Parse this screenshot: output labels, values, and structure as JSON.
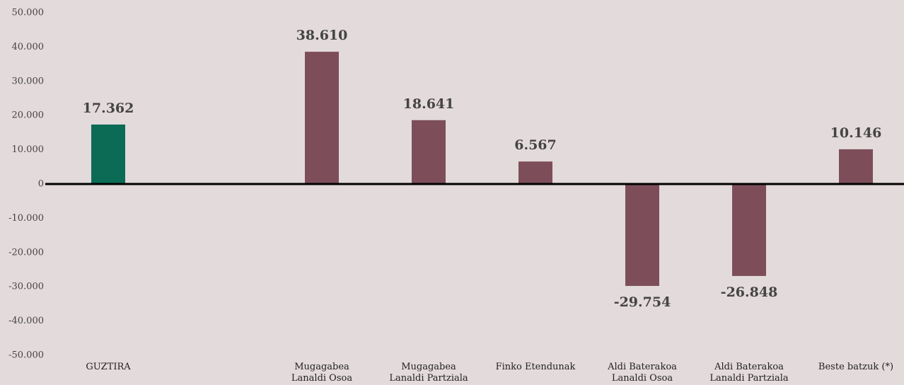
{
  "chart_data": {
    "type": "bar",
    "categories": [
      "GUZTIRA",
      null,
      "Mugagabea\nLanaldi Osoa",
      "Mugagabea\nLanaldi Partziala",
      "Finko Etendunak",
      "Aldi Baterakoa\nLanaldi Osoa",
      "Aldi Baterakoa\nLanaldi Partziala",
      "Beste batzuk (*)"
    ],
    "values": [
      17362,
      null,
      38610,
      18641,
      6567,
      -29754,
      -26848,
      10146
    ],
    "value_labels": [
      "17.362",
      null,
      "38.610",
      "18.641",
      "6.567",
      "-29.754",
      "-26.848",
      "10.146"
    ],
    "colors": [
      "#0b6b55",
      null,
      "#7d4e5a",
      "#7d4e5a",
      "#7d4e5a",
      "#7d4e5a",
      "#7d4e5a",
      "#7d4e5a"
    ],
    "ylim": [
      -50000,
      50000
    ],
    "yticks": [
      {
        "value": -50000,
        "label": "-50.000"
      },
      {
        "value": -40000,
        "label": "-40.000"
      },
      {
        "value": -30000,
        "label": "-30.000"
      },
      {
        "value": -20000,
        "label": "-20.000"
      },
      {
        "value": -10000,
        "label": "-10.000"
      },
      0,
      {
        "value": 10000,
        "label": "10.000"
      },
      {
        "value": 20000,
        "label": "20.000"
      },
      {
        "value": 30000,
        "label": "30.000"
      },
      {
        "value": 40000,
        "label": "40.000"
      },
      {
        "value": 50000,
        "label": "50.000"
      }
    ],
    "grid": false
  }
}
